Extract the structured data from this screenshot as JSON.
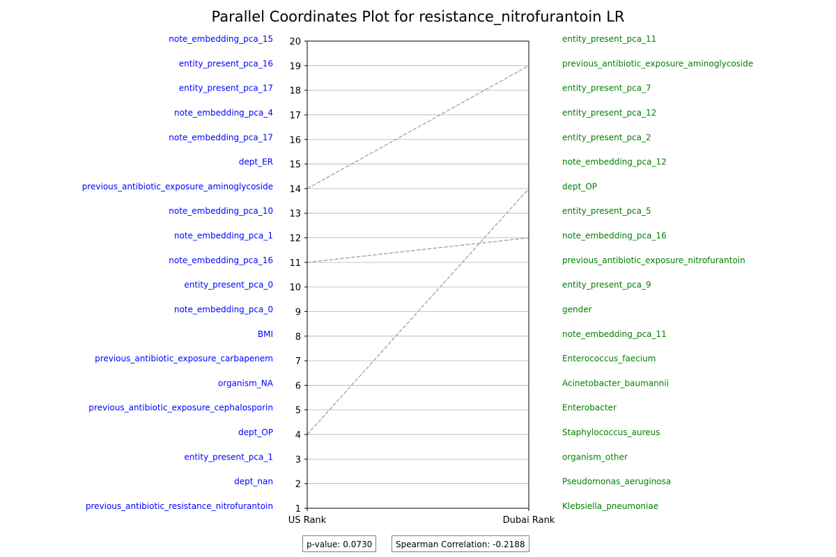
{
  "chart_data": {
    "type": "parallel_coordinates",
    "title": "Parallel Coordinates Plot for resistance_nitrofurantoin LR",
    "axes": [
      "US Rank",
      "Dubai Rank"
    ],
    "ylim": [
      1,
      20
    ],
    "yticks": [
      "1",
      "2",
      "3",
      "4",
      "5",
      "6",
      "7",
      "8",
      "9",
      "10",
      "11",
      "12",
      "13",
      "14",
      "15",
      "16",
      "17",
      "18",
      "19",
      "20"
    ],
    "grid": true,
    "us_rank_labels": [
      "previous_antibiotic_resistance_nitrofurantoin",
      "dept_nan",
      "entity_present_pca_1",
      "dept_OP",
      "previous_antibiotic_exposure_cephalosporin",
      "organism_NA",
      "previous_antibiotic_exposure_carbapenem",
      "BMI",
      "note_embedding_pca_0",
      "entity_present_pca_0",
      "note_embedding_pca_16",
      "note_embedding_pca_1",
      "note_embedding_pca_10",
      "previous_antibiotic_exposure_aminoglycoside",
      "dept_ER",
      "note_embedding_pca_17",
      "note_embedding_pca_4",
      "entity_present_pca_17",
      "entity_present_pca_16",
      "note_embedding_pca_15"
    ],
    "dubai_rank_labels": [
      "Klebsiella_pneumoniae",
      "Pseudomonas_aeruginosa",
      "organism_other",
      "Staphylococcus_aureus",
      "Enterobacter",
      "Acinetobacter_baumannii",
      "Enterococcus_faecium",
      "note_embedding_pca_11",
      "gender",
      "entity_present_pca_9",
      "previous_antibiotic_exposure_nitrofurantoin",
      "note_embedding_pca_16",
      "entity_present_pca_5",
      "dept_OP",
      "note_embedding_pca_12",
      "entity_present_pca_2",
      "entity_present_pca_12",
      "entity_present_pca_7",
      "previous_antibiotic_exposure_aminoglycoside",
      "entity_present_pca_11"
    ],
    "connections": [
      {
        "feature": "previous_antibiotic_exposure_aminoglycoside",
        "us_rank": 14,
        "dubai_rank": 19
      },
      {
        "feature": "note_embedding_pca_16",
        "us_rank": 11,
        "dubai_rank": 12
      },
      {
        "feature": "dept_OP",
        "us_rank": 4,
        "dubai_rank": 14
      }
    ],
    "colors": {
      "us_labels": "#0000ff",
      "dubai_labels": "#008000",
      "lines": "#a9a9a9",
      "grid": "#b0b0b0"
    }
  },
  "stats": {
    "p_value": "p-value: 0.0730",
    "spearman": "Spearman Correlation: -0.2188"
  }
}
